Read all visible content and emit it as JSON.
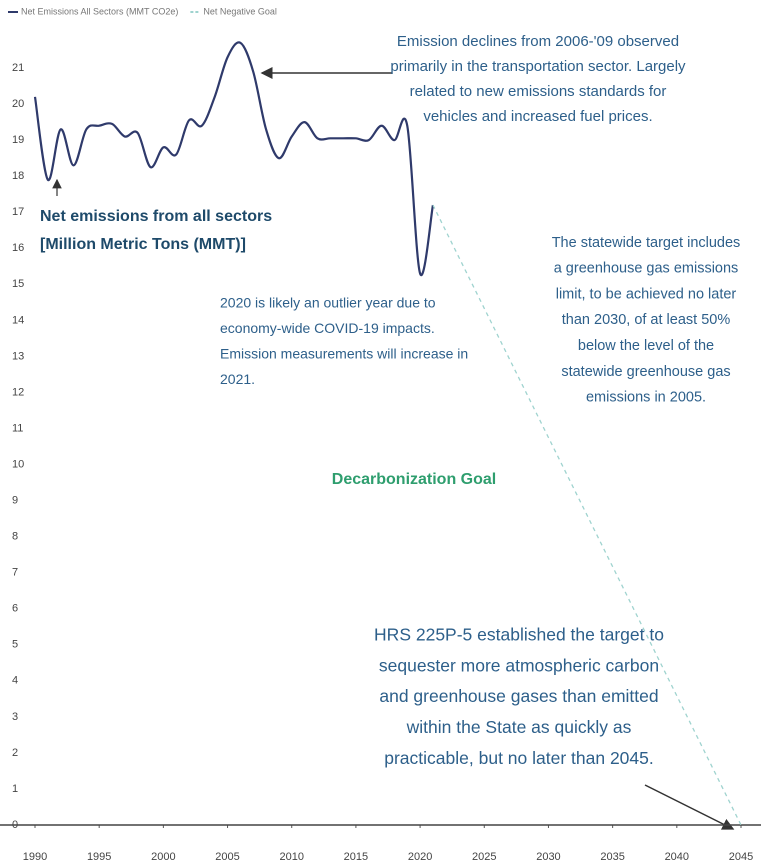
{
  "chart_data": {
    "type": "line",
    "series": [
      {
        "name": "Net Emissions All Sectors (MMT CO2e)",
        "color": "#2f3a6b",
        "dash": false,
        "x": [
          1990,
          1991,
          1992,
          1993,
          1994,
          1995,
          1996,
          1997,
          1998,
          1999,
          2000,
          2001,
          2002,
          2003,
          2004,
          2005,
          2006,
          2007,
          2008,
          2009,
          2010,
          2011,
          2012,
          2013,
          2014,
          2015,
          2016,
          2017,
          2018,
          2019,
          2020,
          2021
        ],
        "values": [
          20.2,
          17.9,
          19.3,
          18.3,
          19.3,
          19.4,
          19.45,
          19.1,
          19.2,
          18.25,
          18.8,
          18.6,
          19.55,
          19.4,
          20.2,
          21.3,
          21.7,
          20.9,
          19.3,
          18.5,
          19.1,
          19.5,
          19.05,
          19.05,
          19.05,
          19.05,
          19.0,
          19.4,
          19.0,
          19.4,
          15.3,
          17.2
        ]
      },
      {
        "name": "Net Negative Goal",
        "color": "#9fd3cf",
        "dash": true,
        "x": [
          2021,
          2045
        ],
        "values": [
          17.2,
          0
        ]
      }
    ],
    "xlim": [
      1990,
      2045
    ],
    "xticks": [
      1990,
      1995,
      2000,
      2005,
      2010,
      2015,
      2020,
      2025,
      2030,
      2035,
      2040,
      2045
    ],
    "ylim": [
      0,
      22
    ],
    "yticks": [
      0,
      1,
      2,
      3,
      4,
      5,
      6,
      7,
      8,
      9,
      10,
      11,
      12,
      13,
      14,
      15,
      16,
      17,
      18,
      19,
      20,
      21
    ],
    "annotations": [
      {
        "lines": [
          "Emission declines from 2006-'09 observed",
          "primarily in the transportation sector. Largely",
          "related to new emissions standards for",
          "vehicles and increased fuel prices."
        ]
      },
      {
        "lines": [
          "Net emissions from all sectors",
          "[Million Metric Tons (MMT)]"
        ]
      },
      {
        "lines": [
          "2020 is likely an outlier year due to",
          "economy-wide COVID-19 impacts.",
          "Emission measurements will increase in",
          "2021."
        ]
      },
      {
        "lines": [
          "The statewide target includes",
          "a greenhouse gas emissions",
          "limit, to be achieved no later",
          "than 2030, of at least 50%",
          "below the level of the",
          "statewide greenhouse gas",
          "emissions in 2005."
        ]
      },
      {
        "lines": [
          "Decarbonization Goal"
        ]
      },
      {
        "lines": [
          "HRS 225P-5 established the target to",
          "sequester more atmospheric carbon",
          "and greenhouse gases than emitted",
          "within the State as quickly as",
          "practicable, but no later than 2045."
        ]
      }
    ]
  }
}
